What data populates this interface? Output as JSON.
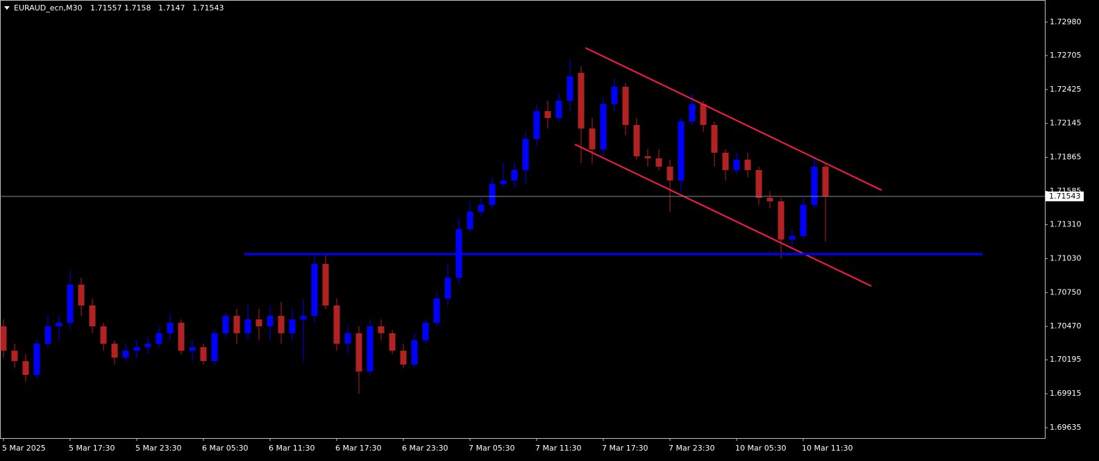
{
  "chart_data": {
    "type": "candlestick",
    "symbol": "EURAUD_ecn,M30",
    "ohlc": [
      1.71557,
      1.7158,
      1.7147,
      1.71543
    ],
    "current_price": 1.71543,
    "up_color": "#0000ff",
    "down_color": "#b22222",
    "price_line_color": "#7f8c99",
    "categories": [
      "5 Mar 2025",
      null,
      null,
      null,
      null,
      null,
      "5 Mar 17:30",
      null,
      null,
      null,
      null,
      null,
      "5 Mar 23:30",
      null,
      null,
      null,
      null,
      null,
      "6 Mar 05:30",
      null,
      null,
      null,
      null,
      null,
      "6 Mar 11:30",
      null,
      null,
      null,
      null,
      null,
      "6 Mar 17:30",
      null,
      null,
      null,
      null,
      null,
      "6 Mar 23:30",
      null,
      null,
      null,
      null,
      null,
      "7 Mar 05:30",
      null,
      null,
      null,
      null,
      null,
      "7 Mar 11:30",
      null,
      null,
      null,
      null,
      null,
      "7 Mar 17:30",
      null,
      null,
      null,
      null,
      null,
      "7 Mar 23:30",
      null,
      null,
      null,
      null,
      null,
      "10 Mar 05:30",
      null,
      null,
      null,
      null,
      null,
      "10 Mar 11:30",
      null,
      null
    ],
    "open": [
      1.70471,
      1.7027,
      1.70184,
      1.7007,
      1.70328,
      1.70471,
      1.705,
      1.70815,
      1.70643,
      1.70471,
      1.70328,
      1.70213,
      1.7027,
      1.70299,
      1.70328,
      1.70414,
      1.705,
      1.7027,
      1.70299,
      1.70184,
      1.70414,
      1.70557,
      1.70414,
      1.70528,
      1.70471,
      1.70557,
      1.70414,
      1.70528,
      1.70557,
      1.70986,
      1.70643,
      1.70328,
      1.70414,
      1.70098,
      1.70471,
      1.70414,
      1.7027,
      1.70156,
      1.70356,
      1.705,
      1.707,
      1.70872,
      1.71273,
      1.71416,
      1.71473,
      1.71645,
      1.71674,
      1.7176,
      1.72017,
      1.72246,
      1.72189,
      1.72332,
      1.72562,
      1.72103,
      1.71931,
      1.72304,
      1.72447,
      1.72132,
      1.71874,
      1.71857,
      1.71788,
      1.71674,
      1.72161,
      1.72304,
      1.72132,
      1.71903,
      1.7176,
      1.71846,
      1.7176,
      1.71531,
      1.71502,
      1.71187,
      1.71216,
      1.71473,
      1.71788
    ],
    "high": [
      1.70528,
      1.70328,
      1.70242,
      1.70356,
      1.70557,
      1.70557,
      1.70929,
      1.70872,
      1.707,
      1.705,
      1.70356,
      1.70328,
      1.70356,
      1.70385,
      1.70471,
      1.70574,
      1.70528,
      1.70356,
      1.70328,
      1.70442,
      1.70585,
      1.70614,
      1.70654,
      1.70614,
      1.70643,
      1.70671,
      1.70614,
      1.707,
      1.71061,
      1.71061,
      1.707,
      1.70471,
      1.70471,
      1.70528,
      1.70528,
      1.70442,
      1.70328,
      1.70414,
      1.70528,
      1.70757,
      1.70986,
      1.71359,
      1.71502,
      1.71531,
      1.71702,
      1.71817,
      1.71817,
      1.72075,
      1.72304,
      1.72332,
      1.7239,
      1.72676,
      1.72619,
      1.72189,
      1.72361,
      1.72521,
      1.72476,
      1.72189,
      1.71931,
      1.71931,
      1.71846,
      1.72189,
      1.7239,
      1.72332,
      1.72161,
      1.71931,
      1.71903,
      1.71903,
      1.71788,
      1.71588,
      1.71531,
      1.71273,
      1.71531,
      1.71857,
      1.71817
    ],
    "low": [
      1.70213,
      1.70127,
      1.70013,
      1.70041,
      1.70299,
      1.70356,
      1.70442,
      1.70557,
      1.70414,
      1.7027,
      1.70156,
      1.70184,
      1.70213,
      1.70242,
      1.70299,
      1.70356,
      1.70242,
      1.70184,
      1.70156,
      1.70156,
      1.70385,
      1.70328,
      1.70356,
      1.70356,
      1.70356,
      1.70328,
      1.70356,
      1.70184,
      1.705,
      1.70614,
      1.7027,
      1.70242,
      1.69916,
      1.7007,
      1.70356,
      1.70242,
      1.70127,
      1.70127,
      1.70328,
      1.70471,
      1.70643,
      1.70815,
      1.71244,
      1.71387,
      1.71445,
      1.71616,
      1.71616,
      1.71645,
      1.7196,
      1.72103,
      1.72161,
      1.72246,
      1.71817,
      1.71817,
      1.71874,
      1.72246,
      1.72046,
      1.71846,
      1.71788,
      1.7176,
      1.71416,
      1.71588,
      1.72132,
      1.72075,
      1.71788,
      1.71674,
      1.71731,
      1.71702,
      1.71473,
      1.71445,
      1.71032,
      1.7113,
      1.71187,
      1.71445,
      1.7117
    ],
    "close": [
      1.7027,
      1.70184,
      1.7007,
      1.70328,
      1.70471,
      1.705,
      1.70815,
      1.70643,
      1.70471,
      1.70328,
      1.70213,
      1.7027,
      1.70299,
      1.70328,
      1.70414,
      1.705,
      1.7027,
      1.70299,
      1.70184,
      1.70414,
      1.70557,
      1.70414,
      1.70528,
      1.70471,
      1.70557,
      1.70414,
      1.70528,
      1.70557,
      1.70986,
      1.70643,
      1.70328,
      1.70414,
      1.70098,
      1.70471,
      1.70414,
      1.7027,
      1.70156,
      1.70356,
      1.705,
      1.707,
      1.70872,
      1.71273,
      1.71416,
      1.71473,
      1.71645,
      1.71674,
      1.7176,
      1.72017,
      1.72246,
      1.72189,
      1.72332,
      1.72533,
      1.72103,
      1.71931,
      1.72304,
      1.72447,
      1.72132,
      1.71874,
      1.71857,
      1.71788,
      1.71674,
      1.72161,
      1.72304,
      1.72132,
      1.71903,
      1.7176,
      1.71846,
      1.7176,
      1.71531,
      1.71502,
      1.71187,
      1.71216,
      1.71473,
      1.71788,
      1.71542
    ],
    "lines": [
      {
        "color": "#ff1a4a",
        "x": [
          52.4,
          79.06
        ],
        "y": [
          1.72768,
          1.71594
        ]
      },
      {
        "color": "#ff1a4a",
        "x": [
          51.44,
          78.13
        ],
        "y": [
          1.71972,
          1.70803
        ]
      },
      {
        "color": "#0000ff",
        "x": [
          21.69,
          88.13
        ],
        "y": [
          1.71067,
          1.71067
        ]
      }
    ],
    "xlim": [
      -0.3125,
      93.75
    ],
    "ylim": [
      1.69549,
      1.73163
    ],
    "yticks": [
      {
        "value": 1.7298,
        "label": "1.72980"
      },
      1.72705,
      1.72425,
      1.72145,
      1.71865,
      1.71585,
      {
        "value": 1.7131,
        "label": "1.71310"
      },
      {
        "value": 1.7103,
        "label": "1.71030"
      },
      {
        "value": 1.7075,
        "label": "1.70750"
      },
      {
        "value": 1.7047,
        "label": "1.70470"
      },
      1.70195,
      1.69915,
      1.69635
    ]
  }
}
